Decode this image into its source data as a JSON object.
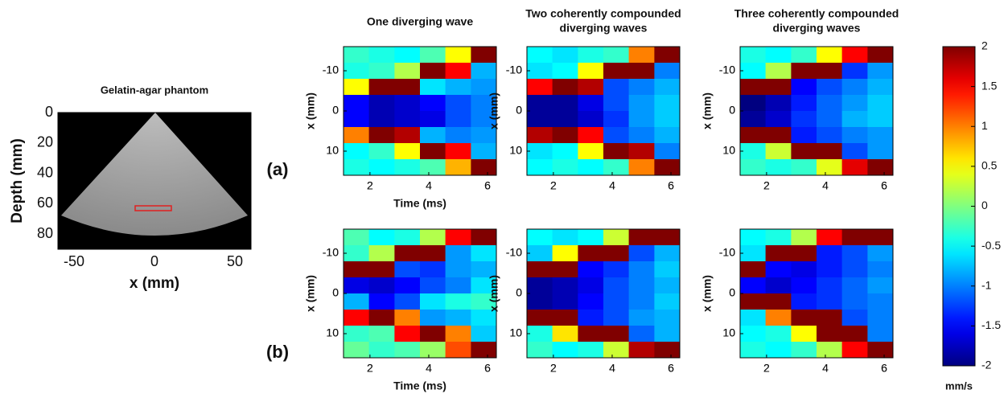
{
  "chart_data": [
    {
      "type": "image",
      "title": "Gelatin-agar phantom",
      "xlabel": "x (mm)",
      "ylabel": "Depth (mm)",
      "xlim": [
        -60,
        60
      ],
      "ylim": [
        0,
        90
      ],
      "y_reversed": true,
      "xticks": [
        -50,
        0,
        50
      ],
      "yticks": [
        0,
        20,
        40,
        60,
        80
      ]
    },
    {
      "type": "heatmap",
      "title": [
        "One diverging wave"
      ],
      "xlabel": "Time (ms)",
      "ylabel": "x (mm)",
      "panel_label": "(a)",
      "xlim": [
        1.1,
        6.3
      ],
      "ylim": [
        -16,
        16
      ],
      "y_reversed": true,
      "xticks": [
        2,
        4,
        6
      ],
      "yticks": [
        -10,
        0,
        10
      ],
      "x": [
        1.53,
        2.4,
        3.27,
        4.13,
        5.0,
        5.87
      ],
      "y": [
        -14,
        -10,
        -6,
        -2,
        2,
        6,
        10,
        14
      ],
      "z": [
        [
          -0.3,
          -0.4,
          -0.5,
          -0.2,
          0.5,
          2
        ],
        [
          -0.4,
          -0.3,
          0.2,
          2,
          1.5,
          -0.8
        ],
        [
          0.5,
          2,
          2,
          -0.6,
          -0.8,
          -0.9
        ],
        [
          -1.5,
          -1.8,
          -1.7,
          -1.5,
          -1.2,
          -1
        ],
        [
          -1.5,
          -1.8,
          -1.7,
          -1.6,
          -1.2,
          -1
        ],
        [
          1,
          2,
          1.8,
          -0.8,
          -1,
          -0.9
        ],
        [
          -0.5,
          -0.3,
          0.5,
          2,
          1.5,
          -0.8
        ],
        [
          -0.4,
          -0.5,
          -0.4,
          -0.2,
          0.8,
          2
        ]
      ]
    },
    {
      "type": "heatmap",
      "title": [
        "Two coherently compounded",
        "diverging waves"
      ],
      "ylabel": "x (mm)",
      "xlim": [
        1.1,
        6.3
      ],
      "ylim": [
        -16,
        16
      ],
      "y_reversed": true,
      "xticks": [
        2,
        4,
        6
      ],
      "yticks": [
        -10,
        0,
        10
      ],
      "x": [
        1.53,
        2.4,
        3.27,
        4.13,
        5.0,
        5.87
      ],
      "y": [
        -14,
        -10,
        -6,
        -2,
        2,
        6,
        10,
        14
      ],
      "z": [
        [
          -0.5,
          -0.6,
          -0.4,
          -0.3,
          1,
          2
        ],
        [
          -0.6,
          -0.5,
          0.5,
          2,
          2,
          -1
        ],
        [
          1.5,
          2,
          1.8,
          -1.2,
          -1,
          -0.8
        ],
        [
          -1.9,
          -1.9,
          -1.6,
          -1.2,
          -0.9,
          -0.7
        ],
        [
          -1.9,
          -1.9,
          -1.7,
          -1.3,
          -0.9,
          -0.7
        ],
        [
          1.8,
          2,
          1.5,
          -1.2,
          -1,
          -0.8
        ],
        [
          -0.6,
          -0.5,
          0.5,
          2,
          1.8,
          -1
        ],
        [
          -0.5,
          -0.4,
          -0.5,
          -0.3,
          1,
          2
        ]
      ]
    },
    {
      "type": "heatmap",
      "title": [
        "Three coherently compounded",
        "diverging waves"
      ],
      "ylabel": "x (mm)",
      "xlim": [
        1.1,
        6.3
      ],
      "ylim": [
        -16,
        16
      ],
      "y_reversed": true,
      "xticks": [
        2,
        4,
        6
      ],
      "yticks": [
        -10,
        0,
        10
      ],
      "x": [
        1.53,
        2.4,
        3.27,
        4.13,
        5.0,
        5.87
      ],
      "y": [
        -14,
        -10,
        -6,
        -2,
        2,
        6,
        10,
        14
      ],
      "z": [
        [
          -0.4,
          -0.5,
          -0.3,
          0.5,
          1.5,
          2
        ],
        [
          -0.5,
          0.2,
          2,
          2,
          -1.3,
          -0.9
        ],
        [
          2,
          2,
          -1.5,
          -1.2,
          -1,
          -0.8
        ],
        [
          -2,
          -1.8,
          -1.4,
          -1.1,
          -0.9,
          -0.7
        ],
        [
          -1.9,
          -1.7,
          -1.3,
          -1.1,
          -0.8,
          -0.7
        ],
        [
          2,
          2,
          -1.4,
          -1.2,
          -1,
          -0.9
        ],
        [
          -0.4,
          0.3,
          2,
          2,
          -1.2,
          -0.9
        ],
        [
          -0.3,
          -0.4,
          -0.3,
          0.4,
          1.6,
          2
        ]
      ]
    },
    {
      "type": "heatmap",
      "xlabel": "Time (ms)",
      "ylabel": "x (mm)",
      "panel_label": "(b)",
      "xlim": [
        1.1,
        6.3
      ],
      "ylim": [
        -16,
        16
      ],
      "y_reversed": true,
      "xticks": [
        2,
        4,
        6
      ],
      "yticks": [
        -10,
        0,
        10
      ],
      "x": [
        1.53,
        2.4,
        3.27,
        4.13,
        5.0,
        5.87
      ],
      "y": [
        -14,
        -10,
        -6,
        -2,
        2,
        6,
        10,
        14
      ],
      "z": [
        [
          -0.2,
          -0.5,
          -0.4,
          0.2,
          1.5,
          2
        ],
        [
          -0.3,
          0.2,
          2,
          2,
          -0.9,
          -0.6
        ],
        [
          2,
          2,
          -1.2,
          -1.3,
          -0.9,
          -0.8
        ],
        [
          -1.6,
          -1.7,
          -1.5,
          -1.2,
          -1,
          -0.6
        ],
        [
          -0.8,
          -1.5,
          -1.2,
          -0.6,
          -0.4,
          -0.3
        ],
        [
          1.5,
          2,
          1,
          -0.9,
          -0.8,
          -0.6
        ],
        [
          -0.3,
          -0.2,
          1.5,
          2,
          1,
          -0.7
        ],
        [
          -0.1,
          -0.3,
          -0.2,
          0.1,
          1.2,
          2
        ]
      ]
    },
    {
      "type": "heatmap",
      "ylabel": "x (mm)",
      "xlim": [
        1.1,
        6.3
      ],
      "ylim": [
        -16,
        16
      ],
      "y_reversed": true,
      "xticks": [
        2,
        4,
        6
      ],
      "yticks": [
        -10,
        0,
        10
      ],
      "x": [
        1.53,
        2.4,
        3.27,
        4.13,
        5.0,
        5.87
      ],
      "y": [
        -14,
        -10,
        -6,
        -2,
        2,
        6,
        10,
        14
      ],
      "z": [
        [
          -0.5,
          -0.6,
          -0.5,
          0.3,
          2,
          2
        ],
        [
          -0.7,
          0.5,
          2,
          2,
          -1.2,
          -0.8
        ],
        [
          2,
          2,
          -1.5,
          -1.3,
          -1,
          -0.7
        ],
        [
          -1.9,
          -1.8,
          -1.6,
          -1.2,
          -1,
          -0.8
        ],
        [
          -1.9,
          -1.8,
          -1.5,
          -1.2,
          -1,
          -0.7
        ],
        [
          2,
          2,
          -1.4,
          -1.2,
          -0.9,
          -0.8
        ],
        [
          -0.4,
          0.6,
          2,
          2,
          -1.1,
          -0.8
        ],
        [
          -0.3,
          -0.5,
          -0.4,
          0.3,
          1.8,
          2
        ]
      ]
    },
    {
      "type": "heatmap",
      "ylabel": "x (mm)",
      "xlim": [
        1.1,
        6.3
      ],
      "ylim": [
        -16,
        16
      ],
      "y_reversed": true,
      "xticks": [
        2,
        4,
        6
      ],
      "yticks": [
        -10,
        0,
        10
      ],
      "x": [
        1.53,
        2.4,
        3.27,
        4.13,
        5.0,
        5.87
      ],
      "y": [
        -14,
        -10,
        -6,
        -2,
        2,
        6,
        10,
        14
      ],
      "z": [
        [
          -0.5,
          -0.4,
          0.2,
          1.5,
          2,
          2
        ],
        [
          -0.6,
          2,
          2,
          -1.4,
          -1.2,
          -0.9
        ],
        [
          2,
          -1.5,
          -1.6,
          -1.4,
          -1.2,
          -1
        ],
        [
          -1.5,
          -1.7,
          -1.5,
          -1.3,
          -1.1,
          -0.9
        ],
        [
          2,
          2,
          -1.4,
          -1.3,
          -1.1,
          -1
        ],
        [
          -0.6,
          1,
          2,
          2,
          -1.2,
          -1
        ],
        [
          -0.5,
          -0.4,
          0.5,
          2,
          2,
          -1
        ],
        [
          -0.4,
          -0.5,
          -0.3,
          0.2,
          1.5,
          2
        ]
      ]
    },
    {
      "type": "colorbar",
      "colormap": "jet",
      "zlim": [
        -2,
        2
      ],
      "ticks": [
        -2,
        -1.5,
        -1,
        -0.5,
        0,
        0.5,
        1,
        1.5,
        2
      ],
      "label": "mm/s"
    }
  ]
}
